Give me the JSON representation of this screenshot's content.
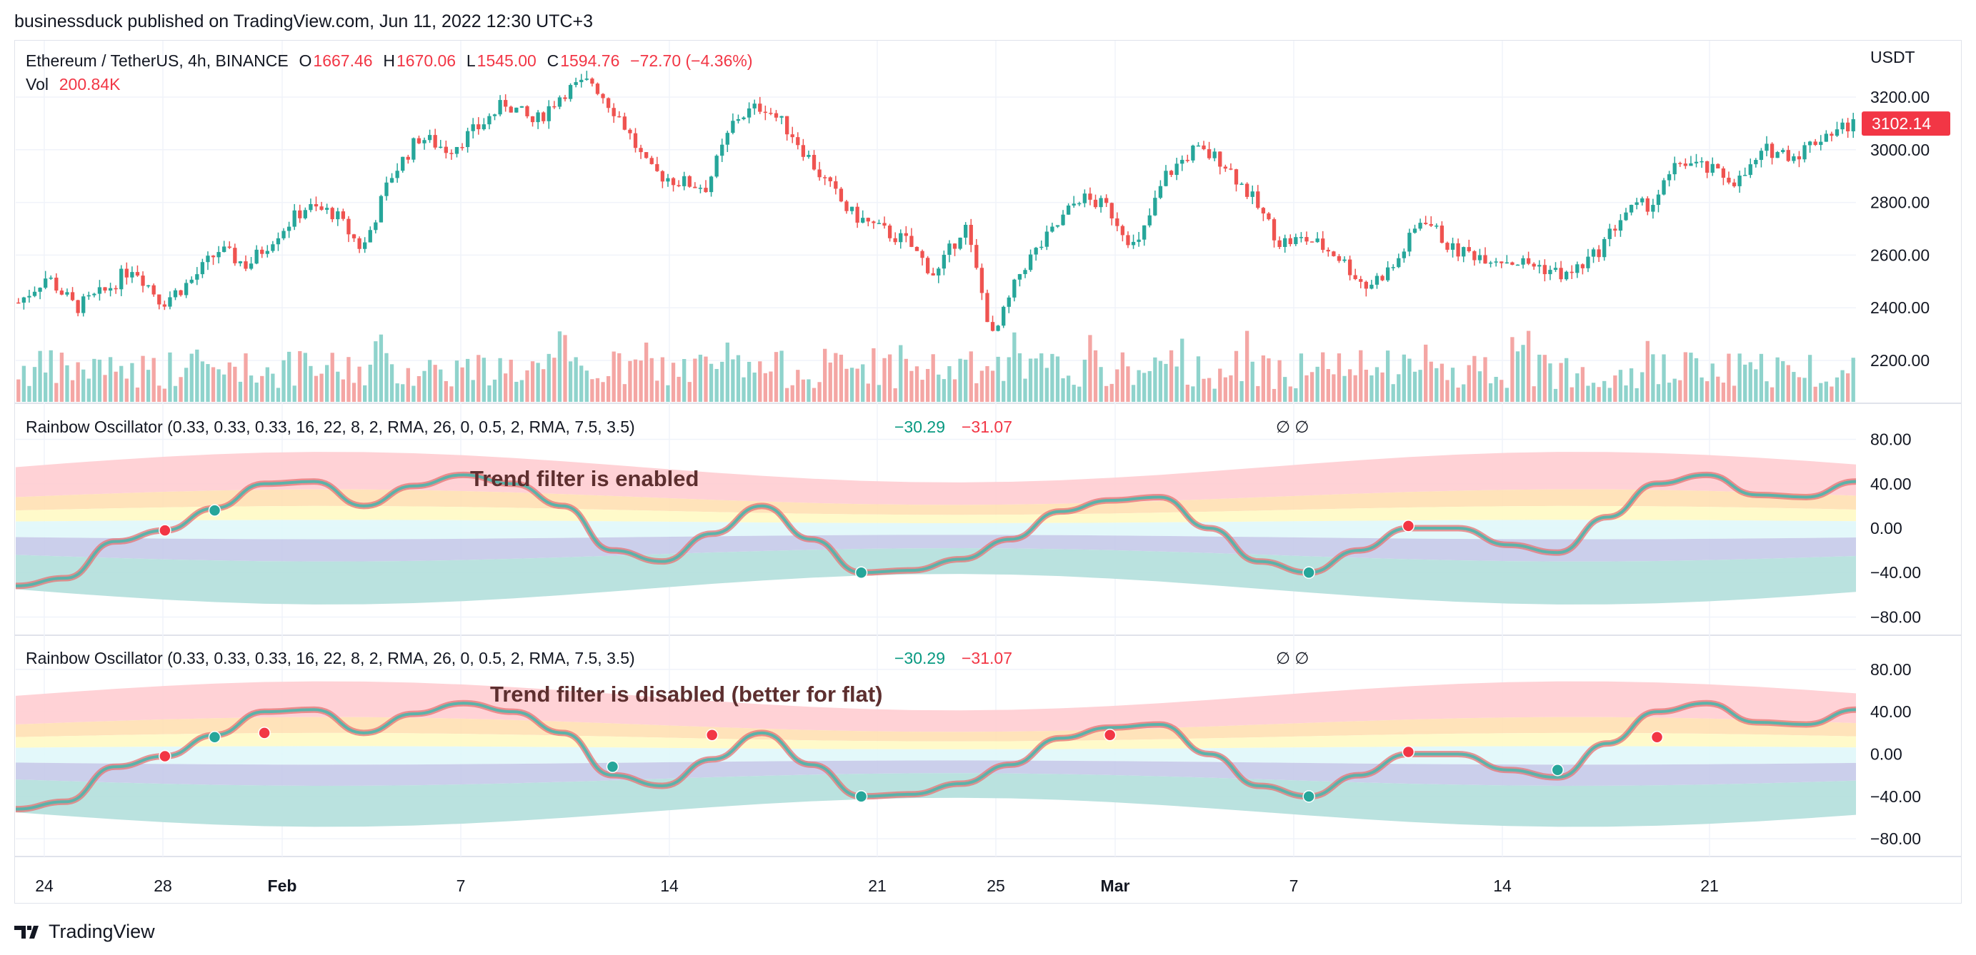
{
  "header": {
    "published": "businessduck published on TradingView.com, Jun 11, 2022 12:30 UTC+3"
  },
  "main_pane": {
    "symbol": "Ethereum / TetherUS, 4h, BINANCE",
    "o_label": "O",
    "o_value": "1667.46",
    "h_label": "H",
    "h_value": "1670.06",
    "l_label": "L",
    "l_value": "1545.00",
    "c_label": "C",
    "c_value": "1594.76",
    "change": "−72.70 (−4.36%)",
    "vol_label": "Vol",
    "vol_value": "200.84K",
    "currency": "USDT",
    "last_price": "3102.14"
  },
  "osc1": {
    "title": "Rainbow Oscillator (0.33, 0.33, 0.33, 16, 22, 8, 2, RMA, 26, 0, 0.5, 2, RMA, 7.5, 3.5)",
    "v1": "−30.29",
    "v2": "−31.07",
    "sym": "∅  ∅",
    "note": "Trend filter is enabled"
  },
  "osc2": {
    "title": "Rainbow Oscillator (0.33, 0.33, 0.33, 16, 22, 8, 2, RMA, 26, 0, 0.5, 2, RMA, 7.5, 3.5)",
    "v1": "−30.29",
    "v2": "−31.07",
    "sym": "∅  ∅",
    "note": "Trend filter is disabled (better for flat)"
  },
  "footer": {
    "brand": "TradingView"
  },
  "colors": {
    "up": "#26a69a",
    "down": "#ef5350",
    "vol_up": "#8fd3cc",
    "vol_down": "#f4a6a4",
    "price_tag": "#f23645"
  },
  "chart_data": [
    {
      "type": "candlestick",
      "title": "Ethereum / TetherUS, 4h, BINANCE",
      "ylabel": "USDT",
      "yticks": [
        2200,
        2400,
        2600,
        2800,
        3000,
        3200
      ],
      "ylim": [
        2040,
        3310
      ],
      "xticks": [
        "24",
        "28",
        "Feb",
        "7",
        "14",
        "21",
        "25",
        "Mar",
        "7",
        "14",
        "21"
      ],
      "close_path": [
        2420,
        2520,
        2400,
        2460,
        2560,
        2420,
        2500,
        2620,
        2560,
        2680,
        2780,
        2760,
        2620,
        2900,
        3050,
        3000,
        3080,
        3180,
        3100,
        3220,
        3260,
        3120,
        2920,
        2880,
        2860,
        3120,
        3170,
        3060,
        2900,
        2760,
        2700,
        2650,
        2520,
        2720,
        2280,
        2550,
        2680,
        2820,
        2780,
        2620,
        2900,
        3000,
        2960,
        2820,
        2650,
        2660,
        2600,
        2480,
        2560,
        2750,
        2620,
        2600,
        2580,
        2560,
        2520,
        2600,
        2760,
        2800,
        2960,
        2920,
        2880,
        3000,
        2980,
        3060,
        3100
      ],
      "last_price": 3102.14
    },
    {
      "type": "line",
      "title": "Rainbow Oscillator (0.33, 0.33, 0.33, 16, 22, 8, 2, RMA, 26, 0, 0.5, 2, RMA, 7.5, 3.5)",
      "yticks": [
        80,
        40,
        0,
        -40,
        -80
      ],
      "ylim": [
        -85,
        85
      ],
      "series": [
        {
          "name": "Rainbow Oscillator",
          "values": [
            -52,
            -45,
            -12,
            -2,
            18,
            40,
            42,
            20,
            38,
            48,
            40,
            20,
            -20,
            -30,
            -5,
            20,
            -10,
            -40,
            -38,
            -28,
            -10,
            15,
            25,
            28,
            0,
            -30,
            -40,
            -20,
            0,
            0,
            -15,
            -22,
            10,
            40,
            48,
            30,
            28,
            42
          ]
        }
      ],
      "markers": [
        {
          "x_index": 3,
          "value": -2,
          "color": "#f23645"
        },
        {
          "x_index": 4,
          "value": 16,
          "color": "#26a69a"
        },
        {
          "x_index": 17,
          "value": -40,
          "color": "#26a69a"
        },
        {
          "x_index": 26,
          "value": -40,
          "color": "#26a69a"
        },
        {
          "x_index": 28,
          "value": 2,
          "color": "#f23645"
        }
      ]
    },
    {
      "type": "line",
      "title": "Rainbow Oscillator (0.33, 0.33, 0.33, 16, 22, 8, 2, RMA, 26, 0, 0.5, 2, RMA, 7.5, 3.5)",
      "yticks": [
        80,
        40,
        0,
        -40,
        -80
      ],
      "ylim": [
        -85,
        85
      ],
      "series": [
        {
          "name": "Rainbow Oscillator",
          "values": [
            -52,
            -45,
            -12,
            -2,
            18,
            40,
            42,
            20,
            38,
            48,
            40,
            20,
            -20,
            -30,
            -5,
            20,
            -10,
            -40,
            -38,
            -28,
            -10,
            15,
            25,
            28,
            0,
            -30,
            -40,
            -20,
            0,
            0,
            -15,
            -22,
            10,
            40,
            48,
            30,
            28,
            42
          ]
        }
      ],
      "markers": [
        {
          "x_index": 3,
          "value": -2,
          "color": "#f23645"
        },
        {
          "x_index": 4,
          "value": 16,
          "color": "#26a69a"
        },
        {
          "x_index": 5,
          "value": 20,
          "color": "#f23645"
        },
        {
          "x_index": 12,
          "value": -12,
          "color": "#26a69a"
        },
        {
          "x_index": 14,
          "value": 18,
          "color": "#f23645"
        },
        {
          "x_index": 17,
          "value": -40,
          "color": "#26a69a"
        },
        {
          "x_index": 22,
          "value": 18,
          "color": "#f23645"
        },
        {
          "x_index": 26,
          "value": -40,
          "color": "#26a69a"
        },
        {
          "x_index": 28,
          "value": 2,
          "color": "#f23645"
        },
        {
          "x_index": 31,
          "value": -15,
          "color": "#26a69a"
        },
        {
          "x_index": 33,
          "value": 16,
          "color": "#f23645"
        }
      ]
    }
  ]
}
